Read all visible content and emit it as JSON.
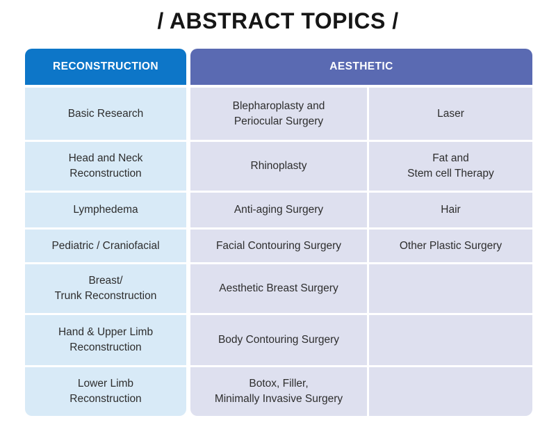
{
  "title": "/ ABSTRACT TOPICS /",
  "colors": {
    "reconstruction_header": "#0d76c8",
    "aesthetic_header": "#5a6ab2",
    "reconstruction_cell": "#d8eaf7",
    "aesthetic_cell": "#dee0ef",
    "header_text": "#ffffff",
    "cell_text": "#2d2d2d",
    "title_text": "#161616"
  },
  "table": {
    "headers": [
      {
        "label": "RECONSTRUCTION"
      },
      {
        "label": "AESTHETIC"
      }
    ],
    "reconstruction": [
      "Basic Research",
      "Head and Neck\nReconstruction",
      "Lymphedema",
      "Pediatric / Craniofacial",
      "Breast/\nTrunk Reconstruction",
      "Hand & Upper Limb\nReconstruction",
      "Lower Limb\nReconstruction"
    ],
    "aesthetic_col1": [
      "Blepharoplasty and\nPeriocular Surgery",
      "Rhinoplasty",
      "Anti-aging Surgery",
      "Facial Contouring Surgery",
      "Aesthetic Breast Surgery",
      "Body Contouring Surgery",
      "Botox, Filler,\nMinimally Invasive Surgery"
    ],
    "aesthetic_col2": [
      "Laser",
      "Fat and\nStem cell Therapy",
      "Hair",
      "Other Plastic Surgery",
      "",
      "",
      ""
    ]
  }
}
